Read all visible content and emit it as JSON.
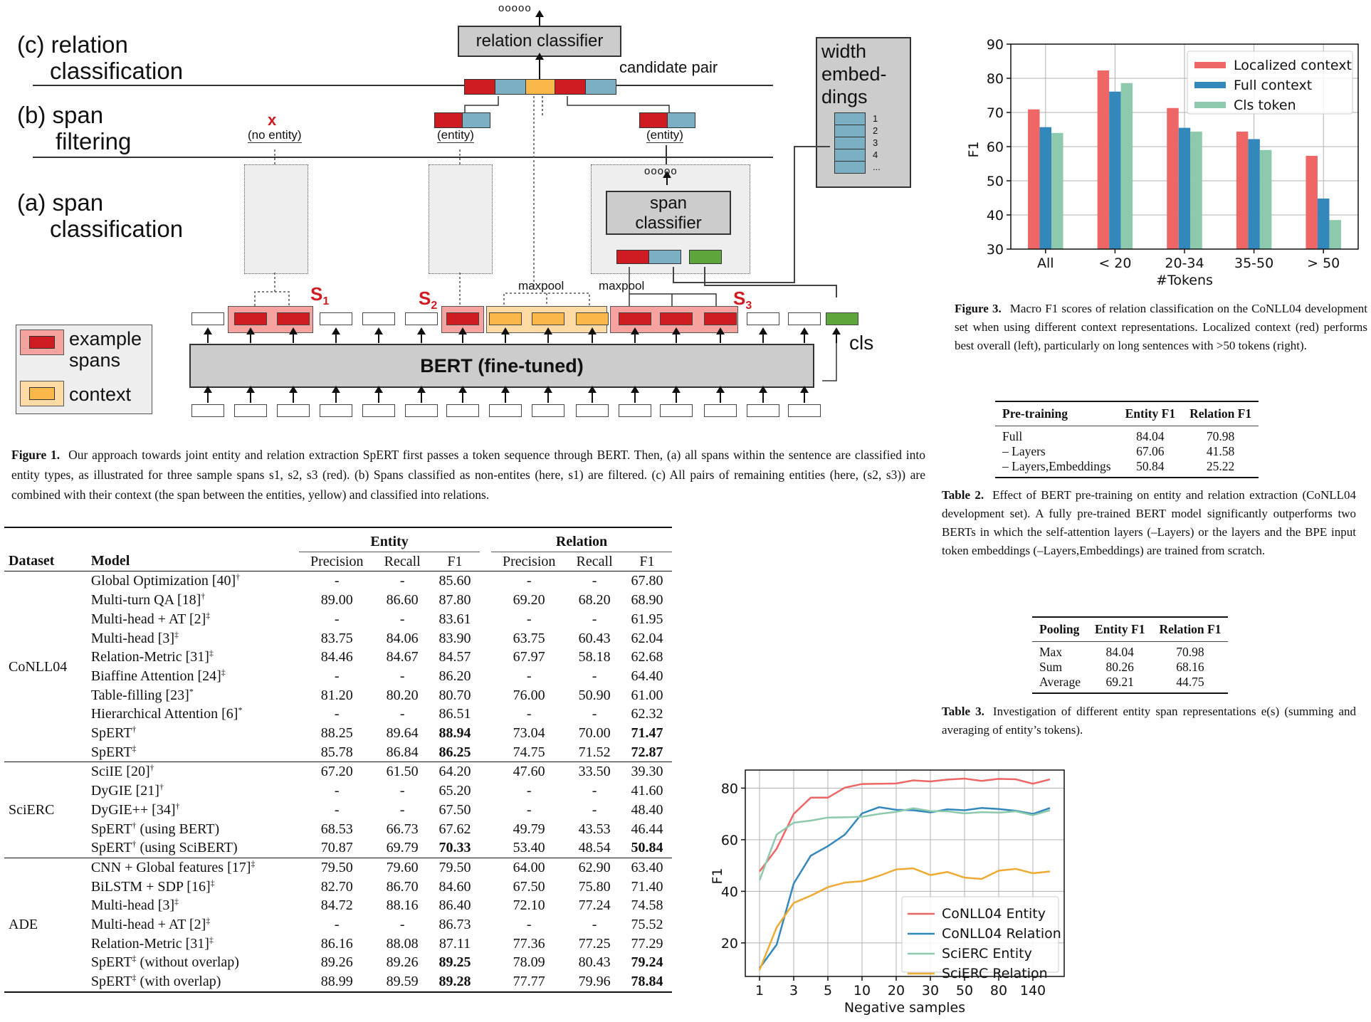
{
  "figure1": {
    "stages": {
      "c_line1": "(c) relation",
      "c_line2": "classification",
      "b_line1": "(b) span",
      "b_line2": "filtering",
      "a_line1": "(a) span",
      "a_line2": "classification"
    },
    "relation_classifier": "relation classifier",
    "candidate_pair": "candidate pair",
    "span_classifier_line1": "span",
    "span_classifier_line2": "classifier",
    "output_circles": "ooooo",
    "no_entity_mark": "x",
    "no_entity": "(no entity)",
    "entity": "(entity)",
    "maxpool": "maxpool",
    "width_embeddings": {
      "line1": "width",
      "line2": "embed-",
      "line3": "dings",
      "indices": [
        "1",
        "2",
        "3",
        "4",
        "..."
      ]
    },
    "span_labels": {
      "s1": "S",
      "s1_sub": "1",
      "s2": "S",
      "s2_sub": "2",
      "s3": "S",
      "s3_sub": "3"
    },
    "bert": "BERT (fine-tuned)",
    "cls": "cls",
    "legend": {
      "example_line1": "example",
      "example_line2": "spans",
      "context": "context"
    },
    "colors": {
      "entity_red": "#cf1b22",
      "embedding_blue": "#7aafc4",
      "context_yellow": "#fbb84a",
      "cls_green": "#5ea63b"
    },
    "caption_label": "Figure 1.",
    "caption": "Our approach towards joint entity and relation extraction SpERT first passes a token sequence through BERT. Then, (a) all spans within the sentence are classified into entity types, as illustrated for three sample spans s1, s2, s3 (red). (b) Spans classified as non-entites (here, s1) are filtered. (c) All pairs of remaining entities (here, (s2, s3)) are combined with their context (the span between the entities, yellow) and classified into relations."
  },
  "figure3": {
    "caption_label": "Figure 3.",
    "caption": "Macro F1 scores of relation classification on the CoNLL04 development set when using different context representations. Localized context (red) performs best overall (left), particularly on long sentences with >50 tokens (right)."
  },
  "table1": {
    "group_headers": {
      "entity": "Entity",
      "relation": "Relation"
    },
    "headers": [
      "Dataset",
      "Model",
      "Precision",
      "Recall",
      "F1",
      "Precision",
      "Recall",
      "F1"
    ],
    "groups": [
      {
        "dataset": "CoNLL04",
        "rows": [
          {
            "model": "Global Optimization [40]",
            "mark": "†",
            "suffix": "",
            "values": [
              "-",
              "-",
              "85.60",
              "-",
              "-",
              "67.80"
            ],
            "bold": []
          },
          {
            "model": "Multi-turn QA [18]",
            "mark": "†",
            "suffix": "",
            "values": [
              "89.00",
              "86.60",
              "87.80",
              "69.20",
              "68.20",
              "68.90"
            ],
            "bold": []
          },
          {
            "model": "Multi-head + AT [2]",
            "mark": "‡",
            "suffix": "",
            "values": [
              "-",
              "-",
              "83.61",
              "-",
              "-",
              "61.95"
            ],
            "bold": []
          },
          {
            "model": "Multi-head [3]",
            "mark": "‡",
            "suffix": "",
            "values": [
              "83.75",
              "84.06",
              "83.90",
              "63.75",
              "60.43",
              "62.04"
            ],
            "bold": []
          },
          {
            "model": "Relation-Metric [31]",
            "mark": "‡",
            "suffix": "",
            "values": [
              "84.46",
              "84.67",
              "84.57",
              "67.97",
              "58.18",
              "62.68"
            ],
            "bold": []
          },
          {
            "model": "Biaffine Attention [24]",
            "mark": "‡",
            "suffix": "",
            "values": [
              "-",
              "-",
              "86.20",
              "-",
              "-",
              "64.40"
            ],
            "bold": []
          },
          {
            "model": "Table-filling [23]",
            "mark": "*",
            "suffix": "",
            "values": [
              "81.20",
              "80.20",
              "80.70",
              "76.00",
              "50.90",
              "61.00"
            ],
            "bold": []
          },
          {
            "model": "Hierarchical Attention [6]",
            "mark": "*",
            "suffix": "",
            "values": [
              "-",
              "-",
              "86.51",
              "-",
              "-",
              "62.32"
            ],
            "bold": []
          },
          {
            "model": "SpERT",
            "mark": "†",
            "suffix": "",
            "values": [
              "88.25",
              "89.64",
              "88.94",
              "73.04",
              "70.00",
              "71.47"
            ],
            "bold": [
              2,
              5
            ]
          },
          {
            "model": "SpERT",
            "mark": "‡",
            "suffix": "",
            "values": [
              "85.78",
              "86.84",
              "86.25",
              "74.75",
              "71.52",
              "72.87"
            ],
            "bold": [
              2,
              5
            ]
          }
        ]
      },
      {
        "dataset": "SciERC",
        "rows": [
          {
            "model": "SciIE [20]",
            "mark": "†",
            "suffix": "",
            "values": [
              "67.20",
              "61.50",
              "64.20",
              "47.60",
              "33.50",
              "39.30"
            ],
            "bold": []
          },
          {
            "model": "DyGIE [21]",
            "mark": "†",
            "suffix": "",
            "values": [
              "-",
              "-",
              "65.20",
              "-",
              "-",
              "41.60"
            ],
            "bold": []
          },
          {
            "model": "DyGIE++ [34]",
            "mark": "†",
            "suffix": "",
            "values": [
              "-",
              "-",
              "67.50",
              "-",
              "-",
              "48.40"
            ],
            "bold": []
          },
          {
            "model": "SpERT",
            "mark": "†",
            "suffix": " (using BERT)",
            "values": [
              "68.53",
              "66.73",
              "67.62",
              "49.79",
              "43.53",
              "46.44"
            ],
            "bold": []
          },
          {
            "model": "SpERT",
            "mark": "†",
            "suffix": " (using SciBERT)",
            "values": [
              "70.87",
              "69.79",
              "70.33",
              "53.40",
              "48.54",
              "50.84"
            ],
            "bold": [
              2,
              5
            ]
          }
        ]
      },
      {
        "dataset": "ADE",
        "rows": [
          {
            "model": "CNN + Global features [17]",
            "mark": "‡",
            "suffix": "",
            "values": [
              "79.50",
              "79.60",
              "79.50",
              "64.00",
              "62.90",
              "63.40"
            ],
            "bold": []
          },
          {
            "model": "BiLSTM + SDP [16]",
            "mark": "‡",
            "suffix": "",
            "values": [
              "82.70",
              "86.70",
              "84.60",
              "67.50",
              "75.80",
              "71.40"
            ],
            "bold": []
          },
          {
            "model": "Multi-head [3]",
            "mark": "‡",
            "suffix": "",
            "values": [
              "84.72",
              "88.16",
              "86.40",
              "72.10",
              "77.24",
              "74.58"
            ],
            "bold": []
          },
          {
            "model": "Multi-head + AT [2]",
            "mark": "‡",
            "suffix": "",
            "values": [
              "-",
              "-",
              "86.73",
              "-",
              "-",
              "75.52"
            ],
            "bold": []
          },
          {
            "model": "Relation-Metric [31]",
            "mark": "‡",
            "suffix": "",
            "values": [
              "86.16",
              "88.08",
              "87.11",
              "77.36",
              "77.25",
              "77.29"
            ],
            "bold": []
          },
          {
            "model": "SpERT",
            "mark": "‡",
            "suffix": " (without overlap)",
            "values": [
              "89.26",
              "89.26",
              "89.25",
              "78.09",
              "80.43",
              "79.24"
            ],
            "bold": [
              2,
              5
            ]
          },
          {
            "model": "SpERT",
            "mark": "‡",
            "suffix": " (with overlap)",
            "values": [
              "88.99",
              "89.59",
              "89.28",
              "77.77",
              "79.96",
              "78.84"
            ],
            "bold": [
              2,
              5
            ]
          }
        ]
      }
    ]
  },
  "table2": {
    "headers": [
      "Pre-training",
      "Entity F1",
      "Relation F1"
    ],
    "rows": [
      [
        "Full",
        "84.04",
        "70.98"
      ],
      [
        "– Layers",
        "67.06",
        "41.58"
      ],
      [
        "– Layers,Embeddings",
        "50.84",
        "25.22"
      ]
    ],
    "caption_label": "Table 2.",
    "caption": "Effect of BERT pre-training on entity and relation extraction (CoNLL04 development set). A fully pre-trained BERT model significantly outperforms two BERTs in which the self-attention layers (–Layers) or the layers and the BPE input token embeddings (–Layers,Embeddings) are trained from scratch."
  },
  "table3": {
    "headers": [
      "Pooling",
      "Entity F1",
      "Relation F1"
    ],
    "rows": [
      [
        "Max",
        "84.04",
        "70.98"
      ],
      [
        "Sum",
        "80.26",
        "68.16"
      ],
      [
        "Average",
        "69.21",
        "44.75"
      ]
    ],
    "caption_label": "Table 3.",
    "caption": "Investigation of different entity span representations e(s) (summing and averaging of entity’s tokens)."
  },
  "chart_data": [
    {
      "type": "bar",
      "title": "",
      "xlabel": "#Tokens",
      "ylabel": "F1",
      "ylim": [
        30,
        90
      ],
      "yticks": [
        30,
        40,
        50,
        60,
        70,
        80,
        90
      ],
      "grid": true,
      "legend_position": "top-right",
      "categories": [
        "All",
        "< 20",
        "20-34",
        "35-50",
        "> 50"
      ],
      "series": [
        {
          "name": "Localized context",
          "color": "#ee6666",
          "values": [
            70.9,
            82.3,
            71.3,
            64.4,
            57.3
          ]
        },
        {
          "name": "Full context",
          "color": "#3388bb",
          "values": [
            65.7,
            76.1,
            65.5,
            62.2,
            44.8
          ]
        },
        {
          "name": "Cls token",
          "color": "#8dc9ac",
          "values": [
            64.0,
            78.6,
            64.4,
            59.0,
            38.5
          ]
        }
      ]
    },
    {
      "type": "line",
      "title": "",
      "xlabel": "Negative samples",
      "ylabel": "F1",
      "ylim": [
        7,
        87
      ],
      "yticks": [
        20,
        40,
        60,
        80
      ],
      "grid": true,
      "legend_position": "bottom-right",
      "x_tick_labels": [
        "1",
        "",
        "3",
        "",
        "5",
        "",
        "10",
        "",
        "20",
        "",
        "30",
        "",
        "50",
        "",
        "80",
        "",
        "140",
        ""
      ],
      "series": [
        {
          "name": "CoNLL04 Entity",
          "color": "#ee6666",
          "values": [
            47.7,
            56.5,
            70.0,
            76.3,
            76.3,
            80.2,
            81.6,
            81.7,
            81.8,
            83.0,
            82.6,
            83.3,
            83.7,
            82.8,
            83.6,
            83.4,
            81.7,
            83.4
          ]
        },
        {
          "name": "CoNLL04 Relation",
          "color": "#3388bb",
          "values": [
            10.2,
            19.3,
            43.0,
            53.8,
            57.5,
            62.0,
            70.2,
            72.6,
            71.6,
            71.4,
            70.6,
            71.8,
            71.4,
            72.3,
            71.9,
            71.2,
            70.0,
            72.3
          ]
        },
        {
          "name": "SciERC Entity",
          "color": "#8dc9ac",
          "values": [
            44.3,
            62.0,
            66.6,
            67.4,
            68.6,
            68.7,
            68.9,
            70.0,
            70.8,
            72.2,
            71.1,
            71.0,
            70.2,
            70.7,
            70.5,
            71.0,
            69.5,
            71.4
          ]
        },
        {
          "name": "SciERC Relation",
          "color": "#eeaa33",
          "values": [
            9.5,
            26.0,
            35.5,
            38.3,
            41.6,
            43.4,
            43.9,
            46.0,
            48.5,
            48.9,
            46.3,
            47.5,
            45.3,
            44.8,
            48.0,
            48.7,
            47.0,
            47.7
          ]
        }
      ]
    }
  ]
}
